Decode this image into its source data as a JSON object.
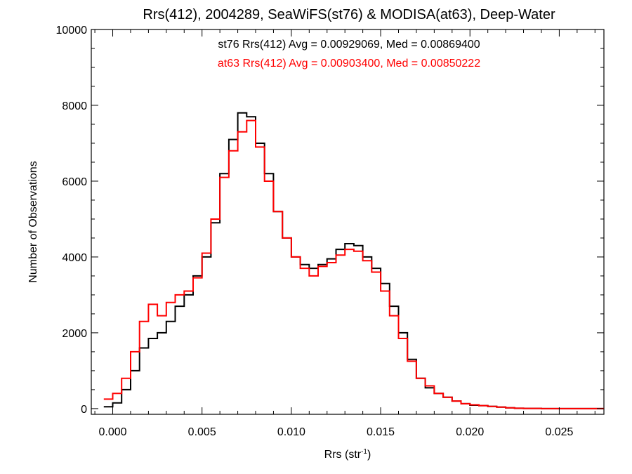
{
  "chart_data": {
    "type": "line",
    "title": "Rrs(412), 2004289, SeaWiFS(st76) & MODISA(at63), Deep-Water",
    "xlabel_main": "Rrs (str",
    "xlabel_sup": "-1",
    "xlabel_close": ")",
    "ylabel": "Number of Observations",
    "xlim": [
      -0.0012,
      0.0275
    ],
    "ylim": [
      -150,
      10000
    ],
    "xticks": [
      0.0,
      0.005,
      0.01,
      0.015,
      0.02,
      0.025
    ],
    "xtick_labels": [
      "0.000",
      "0.005",
      "0.010",
      "0.015",
      "0.020",
      "0.025"
    ],
    "yticks": [
      0,
      2000,
      4000,
      6000,
      8000,
      10000
    ],
    "ytick_labels": [
      "0",
      "2000",
      "4000",
      "6000",
      "8000",
      "10000"
    ],
    "grid": false,
    "annotations": [
      {
        "text": "st76 Rrs(412) Avg = 0.00929069, Med = 0.00869400",
        "color": "#000000"
      },
      {
        "text": "at63 Rrs(412) Avg = 0.00903400, Med = 0.00850222",
        "color": "#ff0000"
      }
    ],
    "series": [
      {
        "id": "st76",
        "color": "#000000",
        "step": true,
        "x": [
          -0.0005,
          0.0,
          0.0005,
          0.001,
          0.0015,
          0.002,
          0.0025,
          0.003,
          0.0035,
          0.004,
          0.0045,
          0.005,
          0.0055,
          0.006,
          0.0065,
          0.007,
          0.0075,
          0.008,
          0.0085,
          0.009,
          0.0095,
          0.01,
          0.0105,
          0.011,
          0.0115,
          0.012,
          0.0125,
          0.013,
          0.0135,
          0.014,
          0.0145,
          0.015,
          0.0155,
          0.016,
          0.0165,
          0.017,
          0.0175,
          0.018,
          0.0185,
          0.019,
          0.0195,
          0.02,
          0.0205,
          0.021,
          0.0215,
          0.022,
          0.0225,
          0.023,
          0.024,
          0.025,
          0.026,
          0.0275
        ],
        "y": [
          50,
          150,
          500,
          1000,
          1600,
          1850,
          2000,
          2300,
          2700,
          3000,
          3500,
          4000,
          4900,
          6200,
          7100,
          7800,
          7700,
          7000,
          6200,
          5200,
          4500,
          4000,
          3800,
          3700,
          3800,
          3950,
          4200,
          4350,
          4300,
          4000,
          3700,
          3300,
          2700,
          2000,
          1300,
          800,
          550,
          400,
          300,
          200,
          130,
          90,
          80,
          60,
          40,
          20,
          10,
          5,
          0,
          0,
          0,
          0
        ]
      },
      {
        "id": "at63",
        "color": "#ff0000",
        "step": true,
        "x": [
          -0.0005,
          0.0,
          0.0005,
          0.001,
          0.0015,
          0.002,
          0.0025,
          0.003,
          0.0035,
          0.004,
          0.0045,
          0.005,
          0.0055,
          0.006,
          0.0065,
          0.007,
          0.0075,
          0.008,
          0.0085,
          0.009,
          0.0095,
          0.01,
          0.0105,
          0.011,
          0.0115,
          0.012,
          0.0125,
          0.013,
          0.0135,
          0.014,
          0.0145,
          0.015,
          0.0155,
          0.016,
          0.0165,
          0.017,
          0.0175,
          0.018,
          0.0185,
          0.019,
          0.0195,
          0.02,
          0.0205,
          0.021,
          0.0215,
          0.022,
          0.0225,
          0.023,
          0.024,
          0.025,
          0.026,
          0.0275
        ],
        "y": [
          250,
          400,
          800,
          1500,
          2300,
          2750,
          2450,
          2800,
          3000,
          3100,
          3450,
          4100,
          5000,
          6100,
          6800,
          7300,
          7600,
          6900,
          6000,
          5200,
          4500,
          4000,
          3700,
          3500,
          3750,
          3850,
          4050,
          4200,
          4150,
          3900,
          3600,
          3100,
          2450,
          1850,
          1250,
          800,
          600,
          400,
          300,
          200,
          130,
          100,
          80,
          60,
          40,
          20,
          10,
          5,
          0,
          0,
          0,
          0
        ]
      }
    ]
  }
}
